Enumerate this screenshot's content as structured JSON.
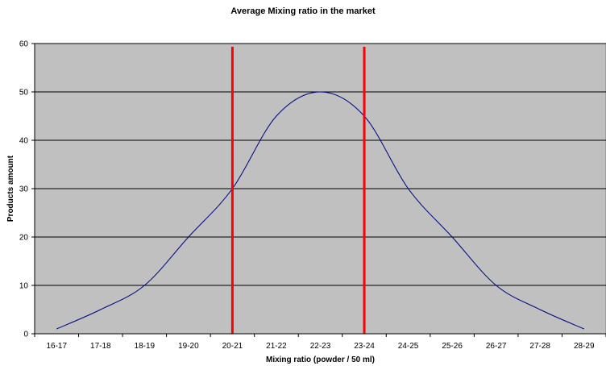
{
  "chart_data": {
    "type": "line",
    "title": "Average Mixing ratio in the market",
    "xlabel": "Mixing ratio (powder / 50 ml)",
    "ylabel": "Products amount",
    "categories": [
      "16-17",
      "17-18",
      "18-19",
      "19-20",
      "20-21",
      "21-22",
      "22-23",
      "23-24",
      "24-25",
      "25-26",
      "26-27",
      "27-28",
      "28-29"
    ],
    "values": [
      1,
      5,
      10,
      20,
      30,
      45,
      50,
      45,
      30,
      20,
      10,
      5,
      1
    ],
    "ylim": [
      0,
      60
    ],
    "yticks": [
      0,
      10,
      20,
      30,
      40,
      50,
      60
    ],
    "grid": true,
    "legend": "none",
    "vertical_markers": [
      {
        "category_position": 4.5
      },
      {
        "category_position": 7.5
      }
    ],
    "colors": {
      "plot_background": "#c0c0c0",
      "line": "#000080",
      "markers": "#ff0000",
      "grid": "#000000"
    }
  }
}
